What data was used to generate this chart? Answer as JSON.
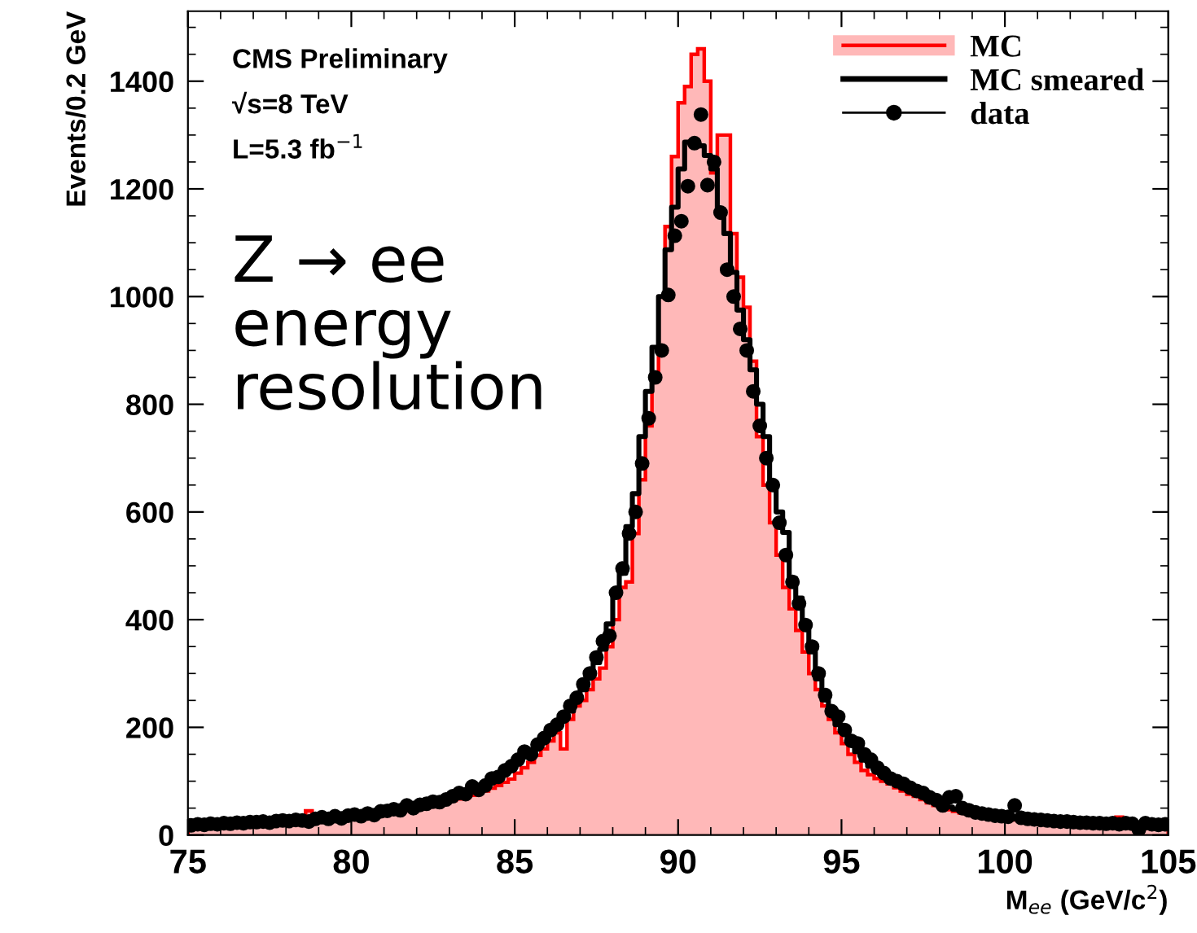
{
  "chart_data": {
    "type": "histogram",
    "xlabel": "M$_{ee}$ (GeV/c$^{2}$)",
    "ylabel": "Events/0.2 GeV",
    "annotations": [
      "CMS Preliminary",
      "√s=8 TeV",
      "L=5.3 fb$^{−1}$",
      "Z → ee\nenergy\nresolution"
    ],
    "bins": [
      75.0,
      75.2,
      75.4,
      75.6,
      75.8,
      76.0,
      76.2,
      76.4,
      76.6,
      76.8,
      77.0,
      77.2,
      77.4,
      77.6,
      77.8,
      78.0,
      78.2,
      78.4,
      78.6,
      78.8,
      79.0,
      79.2,
      79.4,
      79.6,
      79.8,
      80.0,
      80.2,
      80.4,
      80.6,
      80.8,
      81.0,
      81.2,
      81.4,
      81.6,
      81.8,
      82.0,
      82.2,
      82.4,
      82.6,
      82.8,
      83.0,
      83.2,
      83.4,
      83.6,
      83.8,
      84.0,
      84.2,
      84.4,
      84.6,
      84.8,
      85.0,
      85.2,
      85.4,
      85.6,
      85.8,
      86.0,
      86.2,
      86.4,
      86.6,
      86.8,
      87.0,
      87.2,
      87.4,
      87.6,
      87.8,
      88.0,
      88.2,
      88.4,
      88.6,
      88.8,
      89.0,
      89.2,
      89.4,
      89.6,
      89.8,
      90.0,
      90.2,
      90.4,
      90.6,
      90.8,
      91.0,
      91.2,
      91.4,
      91.6,
      91.8,
      92.0,
      92.2,
      92.4,
      92.6,
      92.8,
      93.0,
      93.2,
      93.4,
      93.6,
      93.8,
      94.0,
      94.2,
      94.4,
      94.6,
      94.8,
      95.0,
      95.2,
      95.4,
      95.6,
      95.8,
      96.0,
      96.2,
      96.4,
      96.6,
      96.8,
      97.0,
      97.2,
      97.4,
      97.6,
      97.8,
      98.0,
      98.2,
      98.4,
      98.6,
      98.8,
      99.0,
      99.2,
      99.4,
      99.6,
      99.8,
      100.0,
      100.2,
      100.4,
      100.6,
      100.8,
      101.0,
      101.2,
      101.4,
      101.6,
      101.8,
      102.0,
      102.2,
      102.4,
      102.6,
      102.8,
      103.0,
      103.2,
      103.4,
      103.6,
      103.8,
      104.0,
      104.2,
      104.4,
      104.6,
      104.8,
      105.0
    ],
    "series": [
      {
        "name": "MC",
        "color": "#ff0000",
        "values": [
          22,
          20,
          21,
          23,
          22,
          23,
          22,
          24,
          23,
          25,
          24,
          26,
          25,
          27,
          26,
          27,
          28,
          29,
          45,
          28,
          30,
          31,
          32,
          33,
          34,
          35,
          36,
          37,
          38,
          40,
          41,
          43,
          45,
          47,
          49,
          51,
          53,
          56,
          58,
          61,
          64,
          67,
          70,
          74,
          78,
          82,
          87,
          92,
          98,
          104,
          115,
          125,
          135,
          148,
          160,
          175,
          190,
          160,
          215,
          240,
          250,
          270,
          290,
          310,
          350,
          400,
          460,
          470,
          560,
          660,
          760,
          850,
          1000,
          1130,
          1260,
          1360,
          1390,
          1450,
          1460,
          1400,
          1230,
          1300,
          1300,
          1117,
          1036,
          980,
          880,
          740,
          650,
          580,
          520,
          460,
          420,
          380,
          340,
          300,
          270,
          240,
          215,
          190,
          170,
          150,
          135,
          120,
          112,
          105,
          100,
          95,
          88,
          82,
          76,
          72,
          66,
          60,
          55,
          50,
          47,
          44,
          41,
          39,
          36,
          34,
          33,
          31,
          30,
          29,
          28,
          27,
          26,
          26,
          25,
          24,
          24,
          23,
          23,
          22,
          22,
          21,
          22,
          21,
          21,
          22,
          33,
          21,
          20,
          20,
          21,
          19,
          20,
          20
        ]
      },
      {
        "name": "MC smeared",
        "type": "step",
        "color": "#000000",
        "x": [
          75.1,
          75.3,
          75.5,
          75.7,
          75.9,
          76.1,
          76.3,
          76.5,
          76.7,
          76.9,
          77.1,
          77.3,
          77.5,
          77.7,
          77.9,
          78.1,
          78.3,
          78.5,
          78.7,
          78.9,
          79.1,
          79.3,
          79.5,
          79.7,
          79.9,
          80.1,
          80.3,
          80.5,
          80.7,
          80.9,
          81.1,
          81.3,
          81.5,
          81.7,
          81.9,
          82.1,
          82.3,
          82.5,
          82.7,
          82.9,
          83.1,
          83.3,
          83.5,
          83.7,
          83.9,
          84.1,
          84.3,
          84.5,
          84.7,
          84.9,
          85.1,
          85.3,
          85.5,
          85.7,
          85.9,
          86.1,
          86.3,
          86.5,
          86.7,
          86.9,
          87.1,
          87.3,
          87.5,
          87.7,
          87.9,
          88.1,
          88.3,
          88.5,
          88.7,
          88.9,
          89.1,
          89.3,
          89.5,
          89.7,
          89.9,
          90.1,
          90.3,
          90.5,
          90.7,
          90.9,
          91.1,
          91.3,
          91.5,
          91.7,
          91.9,
          92.1,
          92.3,
          92.5,
          92.7,
          92.9,
          93.1,
          93.3,
          93.5,
          93.7,
          93.9,
          94.1,
          94.3,
          94.5,
          94.7,
          94.9,
          95.1,
          95.3,
          95.5,
          95.7,
          95.9,
          96.1,
          96.3,
          96.5,
          96.7,
          96.9,
          97.1,
          97.3,
          97.5,
          97.7,
          97.9,
          98.1,
          98.3,
          98.5,
          98.7,
          98.9,
          99.1,
          99.3,
          99.5,
          99.7,
          99.9,
          100.1,
          100.3,
          100.5,
          100.7,
          100.9,
          101.1,
          101.3,
          101.5,
          101.7,
          101.9,
          102.1,
          102.3,
          102.5,
          102.7,
          102.9,
          103.1,
          103.3,
          103.5,
          103.7,
          103.9,
          104.1,
          104.3,
          104.5,
          104.7,
          104.9
        ],
        "values": [
          17,
          18,
          19,
          19,
          20,
          20,
          21,
          21,
          22,
          22,
          23,
          23,
          24,
          24,
          25,
          25,
          26,
          27,
          28,
          29,
          30,
          31,
          32,
          33,
          34,
          35,
          36,
          37,
          39,
          41,
          43,
          45,
          47,
          49,
          51,
          54,
          57,
          60,
          63,
          67,
          71,
          75,
          80,
          85,
          90,
          96,
          103,
          110,
          118,
          126,
          135,
          145,
          155,
          165,
          176,
          188,
          200,
          215,
          230,
          250,
          270,
          295,
          320,
          345,
          392,
          453,
          486,
          573,
          634,
          740,
          824,
          906,
          1000,
          1087,
          1166,
          1237,
          1287,
          1290,
          1280,
          1262,
          1237,
          1162,
          1117,
          1045,
          975,
          920,
          864,
          800,
          740,
          650,
          600,
          562,
          477,
          440,
          392,
          340,
          290,
          251,
          230,
          205,
          190,
          170,
          155,
          139,
          128,
          118,
          110,
          100,
          95,
          88,
          82,
          77,
          72,
          66,
          60,
          56,
          52,
          48,
          45,
          42,
          39,
          37,
          35,
          33,
          32,
          31,
          30,
          29,
          28,
          27,
          26,
          25,
          25,
          24,
          24,
          23,
          23,
          22,
          22,
          22,
          21,
          21,
          21,
          21,
          21,
          20,
          20,
          20,
          20,
          20
        ]
      },
      {
        "name": "data",
        "type": "scatter",
        "color": "#000000",
        "marker": "circle",
        "x": [
          75.1,
          75.3,
          75.5,
          75.7,
          75.9,
          76.1,
          76.3,
          76.5,
          76.7,
          76.9,
          77.1,
          77.3,
          77.5,
          77.7,
          77.9,
          78.1,
          78.3,
          78.5,
          78.7,
          78.9,
          79.1,
          79.3,
          79.5,
          79.7,
          79.9,
          80.1,
          80.3,
          80.5,
          80.7,
          80.9,
          81.1,
          81.3,
          81.5,
          81.7,
          81.9,
          82.1,
          82.3,
          82.5,
          82.7,
          82.9,
          83.1,
          83.3,
          83.5,
          83.7,
          83.9,
          84.1,
          84.3,
          84.5,
          84.7,
          84.9,
          85.1,
          85.3,
          85.5,
          85.7,
          85.9,
          86.1,
          86.3,
          86.5,
          86.7,
          86.9,
          87.1,
          87.3,
          87.5,
          87.7,
          87.9,
          88.1,
          88.3,
          88.5,
          88.7,
          88.9,
          89.1,
          89.3,
          89.5,
          89.7,
          89.9,
          90.1,
          90.3,
          90.5,
          90.7,
          90.9,
          91.1,
          91.3,
          91.5,
          91.7,
          91.9,
          92.1,
          92.3,
          92.5,
          92.7,
          92.9,
          93.1,
          93.3,
          93.5,
          93.7,
          93.9,
          94.1,
          94.3,
          94.5,
          94.7,
          94.9,
          95.1,
          95.3,
          95.5,
          95.7,
          95.9,
          96.1,
          96.3,
          96.5,
          96.7,
          96.9,
          97.1,
          97.3,
          97.5,
          97.7,
          97.9,
          98.1,
          98.3,
          98.5,
          98.7,
          98.9,
          99.1,
          99.3,
          99.5,
          99.7,
          99.9,
          100.1,
          100.3,
          100.5,
          100.7,
          100.9,
          101.1,
          101.3,
          101.5,
          101.7,
          101.9,
          102.1,
          102.3,
          102.5,
          102.7,
          102.9,
          103.1,
          103.3,
          103.5,
          103.7,
          103.9,
          104.1,
          104.3,
          104.5,
          104.7,
          104.9
        ],
        "values": [
          18,
          20,
          19,
          21,
          20,
          22,
          21,
          23,
          22,
          24,
          24,
          25,
          23,
          26,
          27,
          26,
          28,
          27,
          25,
          30,
          33,
          30,
          35,
          31,
          36,
          38,
          35,
          40,
          37,
          44,
          45,
          48,
          46,
          55,
          50,
          56,
          58,
          62,
          61,
          66,
          72,
          78,
          76,
          90,
          84,
          92,
          105,
          108,
          120,
          128,
          140,
          155,
          150,
          168,
          180,
          195,
          205,
          220,
          240,
          255,
          280,
          300,
          330,
          360,
          370,
          450,
          495,
          560,
          600,
          690,
          774,
          850,
          900,
          1003,
          1113,
          1140,
          1205,
          1285,
          1338,
          1207,
          1250,
          1156,
          1050,
          1000,
          940,
          900,
          824,
          760,
          700,
          650,
          580,
          520,
          470,
          430,
          390,
          350,
          300,
          260,
          230,
          220,
          195,
          175,
          170,
          150,
          140,
          125,
          115,
          105,
          100,
          95,
          88,
          82,
          78,
          70,
          65,
          55,
          70,
          72,
          50,
          46,
          42,
          40,
          38,
          36,
          35,
          34,
          55,
          32,
          30,
          29,
          28,
          27,
          26,
          25,
          25,
          24,
          23,
          23,
          22,
          22,
          21,
          22,
          20,
          22,
          21,
          10,
          22,
          20,
          19,
          20
        ]
      }
    ],
    "xlim": [
      75,
      105
    ],
    "xticks": [
      75,
      80,
      85,
      90,
      95,
      100,
      105
    ],
    "ylim": [
      0,
      1530
    ],
    "yticks": [
      0,
      200,
      400,
      600,
      800,
      1000,
      1200,
      1400
    ],
    "legend": "top right"
  }
}
